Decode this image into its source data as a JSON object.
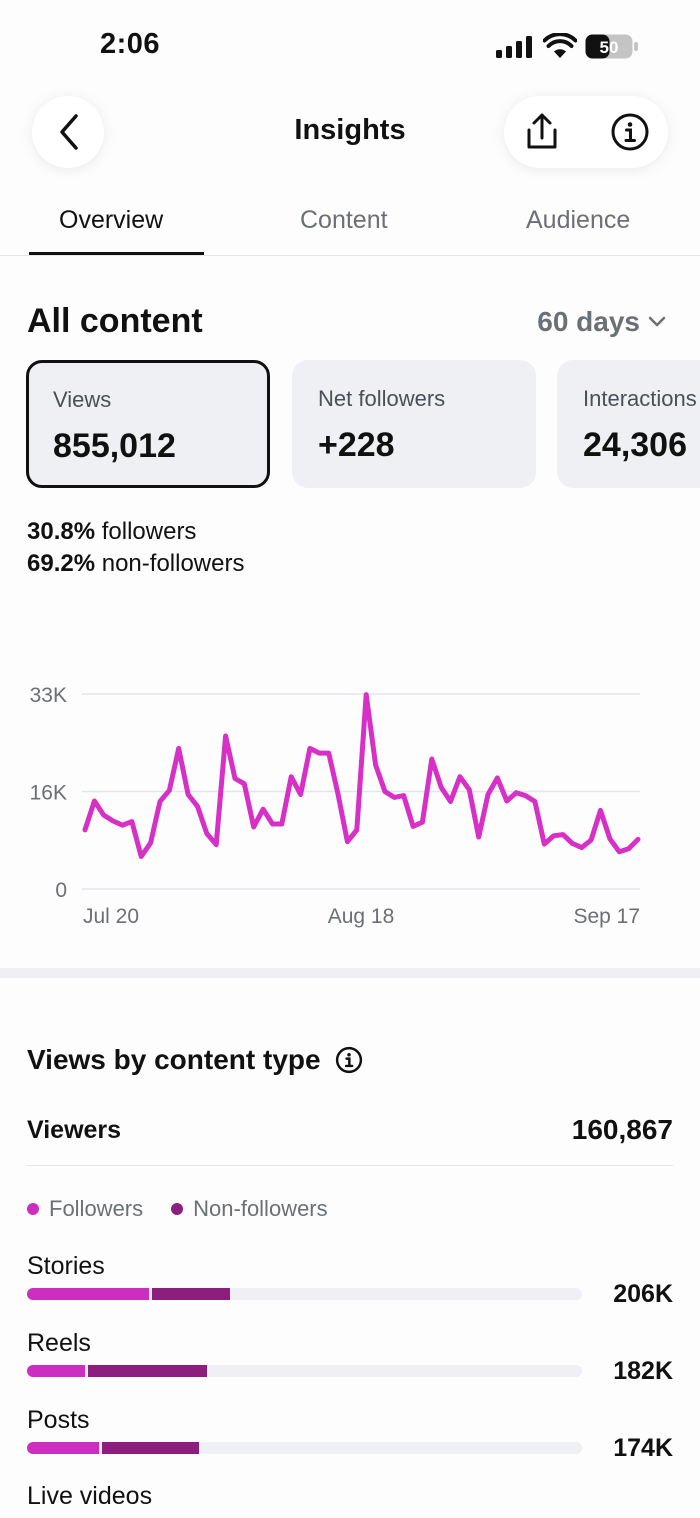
{
  "status_bar": {
    "time": "2:06",
    "battery": "50"
  },
  "header": {
    "title": "Insights"
  },
  "tabs": [
    {
      "label": "Overview",
      "active": true
    },
    {
      "label": "Content",
      "active": false
    },
    {
      "label": "Audience",
      "active": false
    }
  ],
  "all_content": {
    "title": "All content",
    "period": "60 days",
    "cards": [
      {
        "label": "Views",
        "value": "855,012",
        "selected": true
      },
      {
        "label": "Net followers",
        "value": "+228",
        "selected": false
      },
      {
        "label": "Interactions",
        "value": "24,306",
        "selected": false
      }
    ],
    "split": [
      {
        "pct": "30.8%",
        "label": "followers"
      },
      {
        "pct": "69.2%",
        "label": "non-followers"
      }
    ]
  },
  "chart_data": {
    "type": "line",
    "y_ticks": [
      "33K",
      "16K",
      "0"
    ],
    "x_ticks": [
      "Jul 20",
      "Aug 18",
      "Sep 17"
    ],
    "ylim": [
      0,
      33000
    ],
    "color": "#d630c6",
    "series": [
      {
        "values": [
          10000,
          14900,
          12500,
          11500,
          10800,
          11400,
          5500,
          7800,
          14800,
          16700,
          23800,
          16000,
          14000,
          9400,
          7500,
          25900,
          18700,
          17800,
          10500,
          13500,
          11000,
          11000,
          19000,
          16000,
          23800,
          23000,
          23000,
          16000,
          8000,
          10000,
          32900,
          21000,
          16500,
          15500,
          15800,
          10600,
          11300,
          22000,
          17200,
          14800,
          19000,
          16800,
          8800,
          16000,
          18800,
          14900,
          16300,
          15800,
          14800,
          7600,
          9000,
          9200,
          7700,
          7000,
          8300,
          13300,
          8500,
          6300,
          6800,
          8400
        ]
      }
    ]
  },
  "views_by_type": {
    "title": "Views by content type",
    "viewers_label": "Viewers",
    "viewers_value": "160,867",
    "legend": [
      {
        "label": "Followers",
        "color": "#cb2ec1"
      },
      {
        "label": "Non-followers",
        "color": "#8e1e7d"
      }
    ],
    "rows": [
      {
        "name": "Stories",
        "value": "206K",
        "followers_pct": 0.22,
        "nonfollowers_pct": 0.145
      },
      {
        "name": "Reels",
        "value": "182K",
        "followers_pct": 0.105,
        "nonfollowers_pct": 0.22
      },
      {
        "name": "Posts",
        "value": "174K",
        "followers_pct": 0.13,
        "nonfollowers_pct": 0.18
      },
      {
        "name": "Live videos"
      }
    ]
  }
}
